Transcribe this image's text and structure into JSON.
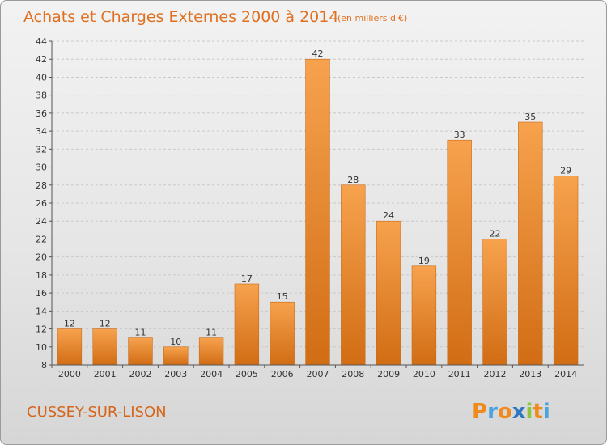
{
  "chart_data": {
    "type": "bar",
    "title": "Achats et Charges Externes 2000 à 2014",
    "subtitle": "(en milliers d'€)",
    "categories": [
      "2000",
      "2001",
      "2002",
      "2003",
      "2004",
      "2005",
      "2006",
      "2007",
      "2008",
      "2009",
      "2010",
      "2011",
      "2012",
      "2013",
      "2014"
    ],
    "values": [
      12,
      12,
      11,
      10,
      11,
      17,
      15,
      42,
      28,
      24,
      19,
      33,
      22,
      35,
      29
    ],
    "ylim": [
      8,
      44
    ],
    "yticks": [
      8,
      10,
      12,
      14,
      16,
      18,
      20,
      22,
      24,
      26,
      28,
      30,
      32,
      34,
      36,
      38,
      40,
      42,
      44
    ],
    "grid": true,
    "colors": {
      "bar_light": "#f7a24e",
      "bar_dark": "#d16d14",
      "title": "#e07020"
    }
  },
  "footer": {
    "place": "CUSSEY-SUR-LISON",
    "logo": {
      "text": "Proxiti",
      "letters": [
        "P",
        "r",
        "o",
        "x",
        "i",
        "t",
        "i"
      ],
      "colors": [
        "#f08a1c",
        "#4aa3df",
        "#f08a1c",
        "#2e78c2",
        "#8cc63f",
        "#f08a1c",
        "#4aa3df"
      ]
    }
  }
}
